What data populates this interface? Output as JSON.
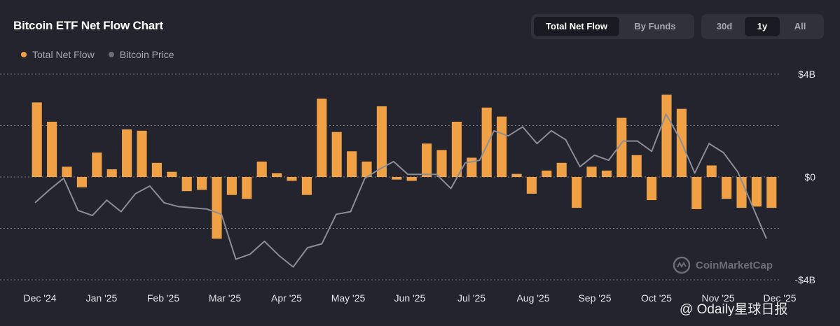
{
  "header": {
    "title": "Bitcoin ETF Net Flow Chart",
    "view_toggle": {
      "options": [
        "Total Net Flow",
        "By Funds"
      ],
      "selected": "Total Net Flow"
    },
    "range_toggle": {
      "options": [
        "30d",
        "1y",
        "All"
      ],
      "selected": "1y"
    }
  },
  "legend": {
    "net_flow": "Total Net Flow",
    "price": "Bitcoin Price"
  },
  "watermark": "CoinMarketCap",
  "source_tag": "@ Odaily星球日报",
  "colors": {
    "background": "#24242e",
    "bar": "#f0a145",
    "price_line": "#8a8d98",
    "grid": "#9a9ca6",
    "toggle_bg": "#30313b",
    "toggle_active": "#1a1a22"
  },
  "chart_data": {
    "type": "bar",
    "title": "Bitcoin ETF Net Flow Chart",
    "xlabel": "",
    "ylabel": "",
    "ylim": [
      -4,
      4
    ],
    "y_unit": "billion USD",
    "y_ticks": [
      "$4B",
      "$0",
      "-$4B"
    ],
    "x_tick_labels": [
      "Dec '24",
      "Jan '25",
      "Feb '25",
      "Mar '25",
      "Apr '25",
      "May '25",
      "Jun '25",
      "Jul '25",
      "Aug '25",
      "Sep '25",
      "Oct '25",
      "Nov '25",
      "Dec '25"
    ],
    "series": [
      {
        "name": "Total Net Flow",
        "type": "bar",
        "values": [
          2.9,
          2.15,
          0.4,
          -0.4,
          0.95,
          0.3,
          1.85,
          1.8,
          0.55,
          0.2,
          -0.55,
          -0.5,
          -2.4,
          -0.7,
          -0.85,
          0.6,
          0.15,
          -0.15,
          -0.7,
          3.05,
          1.75,
          1.0,
          0.6,
          2.75,
          -0.1,
          -0.15,
          1.3,
          1.05,
          2.15,
          0.75,
          2.7,
          2.35,
          0.12,
          -0.65,
          0.25,
          0.55,
          -1.2,
          0.4,
          0.25,
          2.3,
          0.85,
          -0.9,
          3.2,
          2.65,
          -1.25,
          0.45,
          -0.85,
          -1.2,
          -1.15,
          -1.2
        ]
      },
      {
        "name": "Bitcoin Price",
        "type": "line",
        "values": [
          -1.0,
          -0.5,
          -0.05,
          -1.3,
          -1.5,
          -0.9,
          -1.35,
          -0.65,
          -0.35,
          -1.0,
          -1.15,
          -1.2,
          -1.25,
          -1.45,
          -3.2,
          -3.0,
          -2.5,
          -3.05,
          -3.5,
          -2.75,
          -2.6,
          -1.45,
          -1.35,
          -0.05,
          0.3,
          0.6,
          0.1,
          0.1,
          0.1,
          -0.45,
          0.55,
          0.65,
          1.8,
          1.6,
          1.95,
          1.3,
          1.8,
          1.45,
          0.4,
          0.85,
          0.65,
          1.4,
          1.4,
          1.0,
          2.45,
          1.45,
          0.15,
          1.3,
          0.95,
          0.2,
          -1.1,
          -2.4
        ]
      }
    ]
  }
}
